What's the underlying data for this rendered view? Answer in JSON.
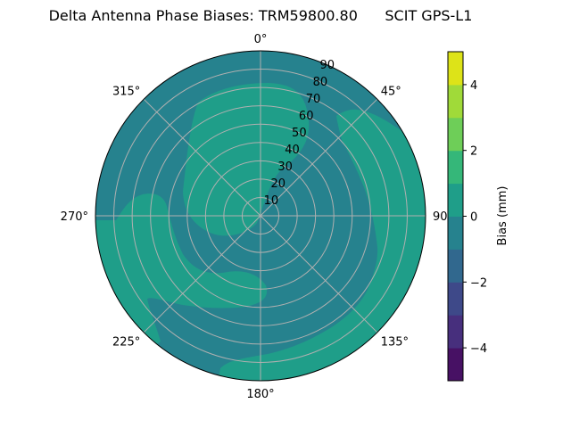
{
  "chart_data": {
    "type": "polar-contour",
    "title": "Delta Antenna Phase Biases: TRM59800.80      SCIT GPS-L1",
    "angle_ticks": [
      {
        "deg": 0,
        "label": "0°"
      },
      {
        "deg": 45,
        "label": "45°"
      },
      {
        "deg": 90,
        "label": "90°"
      },
      {
        "deg": 135,
        "label": "135°"
      },
      {
        "deg": 180,
        "label": "180°"
      },
      {
        "deg": 225,
        "label": "225°"
      },
      {
        "deg": 270,
        "label": "270°"
      },
      {
        "deg": 315,
        "label": "315°"
      }
    ],
    "angle_direction": "clockwise, 0° at top",
    "radial_ticks": [
      10,
      20,
      30,
      40,
      50,
      60,
      70,
      80,
      90
    ],
    "radial_range": [
      0,
      90
    ],
    "grid": true,
    "colorbar": {
      "label": "Bias (mm)",
      "range": [
        -5,
        5
      ],
      "ticks": [
        -4,
        -2,
        0,
        2,
        4
      ],
      "tick_labels": [
        "−4",
        "−2",
        "0",
        "2",
        "4"
      ],
      "levels": [
        -5,
        -4,
        -3,
        -2,
        -1,
        0,
        1,
        2,
        3,
        4,
        5
      ],
      "colors": [
        "#471164",
        "#472f7d",
        "#3e4989",
        "#31688e",
        "#26828e",
        "#1f9e89",
        "#35b779",
        "#6ece58",
        "#a0da39",
        "#dde318"
      ],
      "colormap": "viridis"
    },
    "field": {
      "background_level": [
        -1,
        0
      ],
      "regions_level": [
        0,
        1
      ],
      "description_levels_present": [
        "-1 to 0",
        "0 to 1"
      ]
    }
  }
}
